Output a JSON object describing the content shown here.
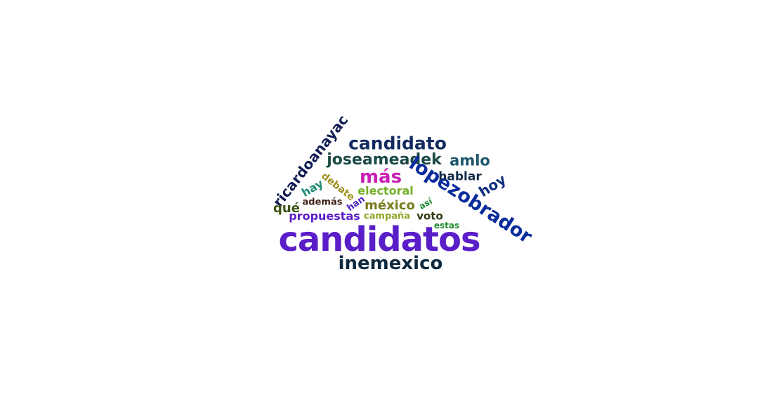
{
  "words": [
    {
      "key": "candidatos",
      "text": "candidatos",
      "color": "#5a1ec8"
    },
    {
      "key": "inemexico",
      "text": "inemexico",
      "color": "#0f2a3e"
    },
    {
      "key": "candidato",
      "text": "candidato",
      "color": "#122a5e"
    },
    {
      "key": "joseameadek",
      "text": "joseameadek",
      "color": "#1c4a44"
    },
    {
      "key": "amlo",
      "text": "amlo",
      "color": "#1c566a"
    },
    {
      "key": "mas",
      "text": "más",
      "color": "#c81eb4"
    },
    {
      "key": "lopezobrador",
      "text": "lopezobrador",
      "color": "#0a2c9c"
    },
    {
      "key": "ricardoanayac",
      "text": "ricardoanayac",
      "color": "#101c52"
    },
    {
      "key": "hablar",
      "text": "hablar",
      "color": "#122c48"
    },
    {
      "key": "hoy",
      "text": "hoy",
      "color": "#102e7e"
    },
    {
      "key": "hay",
      "text": "hay",
      "color": "#1e8a72"
    },
    {
      "key": "debate",
      "text": "debate",
      "color": "#a09022"
    },
    {
      "key": "electoral",
      "text": "electoral",
      "color": "#74b028"
    },
    {
      "key": "ademas",
      "text": "además",
      "color": "#3e1e10"
    },
    {
      "key": "han",
      "text": "han",
      "color": "#4a1ec8"
    },
    {
      "key": "mexico",
      "text": "méxico",
      "color": "#7a7a1e"
    },
    {
      "key": "asi",
      "text": "así",
      "color": "#1e8a2e"
    },
    {
      "key": "que",
      "text": "qué",
      "color": "#3a5210"
    },
    {
      "key": "propuestas",
      "text": "propuestas",
      "color": "#5a1ec8"
    },
    {
      "key": "campana",
      "text": "campaña",
      "color": "#92a42a"
    },
    {
      "key": "voto",
      "text": "voto",
      "color": "#2a3a0e"
    },
    {
      "key": "estas",
      "text": "estas",
      "color": "#1e8a2e"
    }
  ]
}
